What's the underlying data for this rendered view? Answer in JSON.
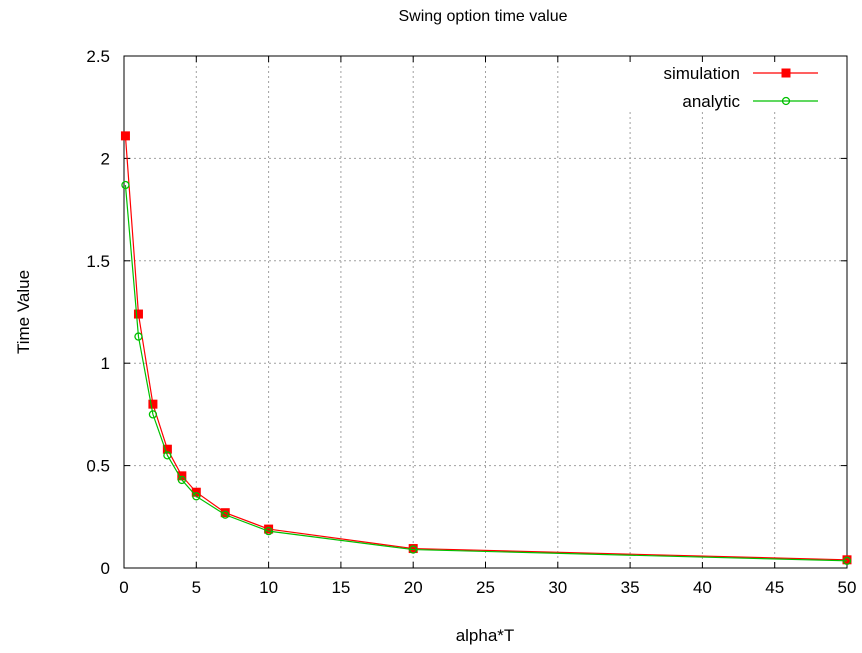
{
  "chart_data": {
    "type": "line",
    "title": "Swing option time value",
    "xlabel": "alpha*T",
    "ylabel": "Time Value",
    "xlim": [
      0,
      50
    ],
    "ylim": [
      0,
      2.5
    ],
    "xticks": [
      "0",
      "5",
      "10",
      "15",
      "20",
      "25",
      "30",
      "35",
      "40",
      "45",
      "50"
    ],
    "yticks": [
      "0",
      "0.5",
      "1",
      "1.5",
      "2",
      "2.5"
    ],
    "grid": true,
    "legend_position": "top-right",
    "series": [
      {
        "name": "simulation",
        "color": "#ff0000",
        "marker": "filled-square",
        "x": [
          0.1,
          1,
          2,
          3,
          4,
          5,
          7,
          10,
          20,
          50
        ],
        "y": [
          2.11,
          1.24,
          0.8,
          0.58,
          0.45,
          0.37,
          0.27,
          0.19,
          0.095,
          0.04
        ]
      },
      {
        "name": "analytic",
        "color": "#00c000",
        "marker": "open-circle",
        "x": [
          0.1,
          1,
          2,
          3,
          4,
          5,
          7,
          10,
          20,
          50
        ],
        "y": [
          1.87,
          1.13,
          0.75,
          0.55,
          0.43,
          0.35,
          0.26,
          0.18,
          0.09,
          0.035
        ]
      }
    ]
  }
}
